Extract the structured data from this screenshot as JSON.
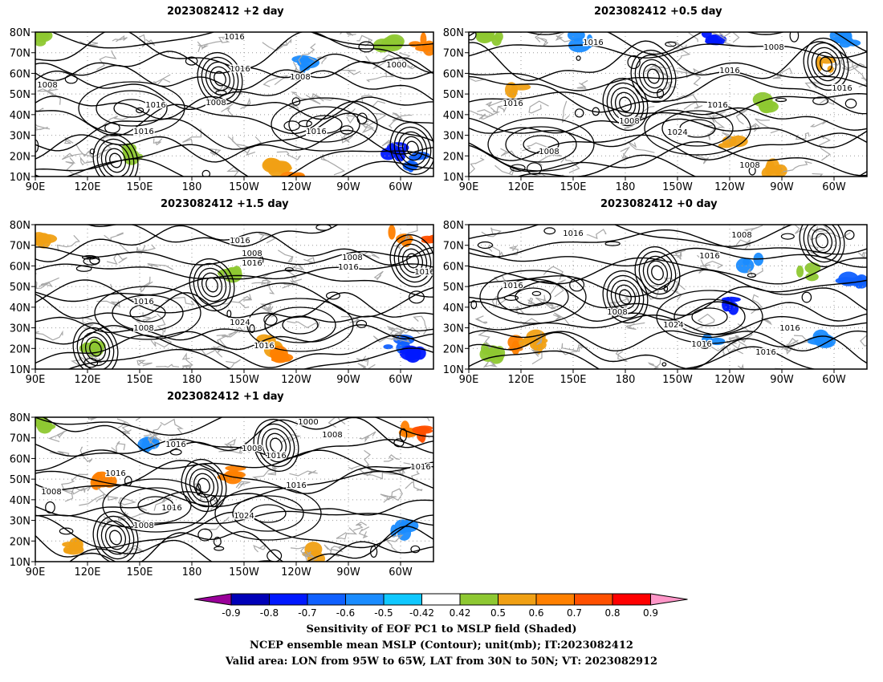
{
  "panels": [
    {
      "title": "2023082412 +2 day"
    },
    {
      "title": "2023082412 +0.5 day"
    },
    {
      "title": "2023082412 +1.5 day"
    },
    {
      "title": "2023082412 +0 day"
    },
    {
      "title": "2023082412 +1 day"
    }
  ],
  "lat_labels": [
    "80N",
    "70N",
    "60N",
    "50N",
    "40N",
    "30N",
    "20N",
    "10N"
  ],
  "lon_labels": [
    "90E",
    "120E",
    "150E",
    "180",
    "150W",
    "120W",
    "90W",
    "60W"
  ],
  "contour_labels": [
    "1016",
    "1008",
    "1000",
    "1024"
  ],
  "colorbar": {
    "ticks": [
      "-0.9",
      "-0.8",
      "-0.7",
      "-0.6",
      "-0.5",
      "-0.42",
      "0.42",
      "0.5",
      "0.6",
      "0.7",
      "0.8",
      "0.9"
    ],
    "colors": [
      "#9a009a",
      "#0000b8",
      "#0018ff",
      "#1060ff",
      "#1a8cff",
      "#10c8ff",
      "#ffffff",
      "#8ec832",
      "#f0a014",
      "#ff8000",
      "#ff5000",
      "#ff0000",
      "#ff96c8"
    ]
  },
  "caption": {
    "line1": "Sensitivity of EOF PC1 to MSLP field (Shaded)",
    "line2": "NCEP ensemble mean MSLP (Contour); unit(mb); IT:2023082412",
    "line3": "Valid area: LON from 95W to 65W, LAT from 30N to 50N; VT: 2023082912"
  }
}
